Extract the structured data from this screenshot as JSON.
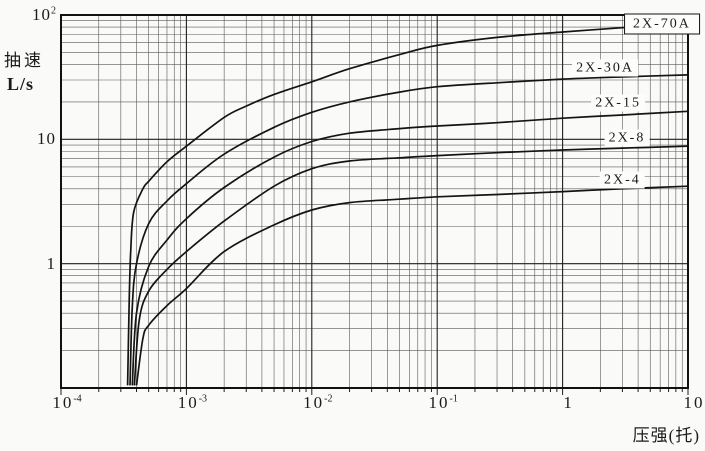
{
  "y_axis": {
    "title_line1": "抽速",
    "title_line2": "L/s",
    "ticks": [
      {
        "text": "10",
        "exp": "2",
        "v": 100
      },
      {
        "text": "10",
        "v": 10
      },
      {
        "text": "1",
        "v": 1
      }
    ]
  },
  "x_axis": {
    "title": "压强(托)",
    "ticks": [
      {
        "text": "10",
        "exp": "-4",
        "v": 0.0001
      },
      {
        "text": "10",
        "exp": "-3",
        "v": 0.001
      },
      {
        "text": "10",
        "exp": "-2",
        "v": 0.01
      },
      {
        "text": "10",
        "exp": "-1",
        "v": 0.1
      },
      {
        "text": "1",
        "v": 1
      },
      {
        "text": "10",
        "v": 10
      }
    ]
  },
  "colors": {
    "line": "#141414",
    "grid_major": "#1f1f1f",
    "grid_minor": "#5a5a5a",
    "frame": "#111111",
    "background": "#fafaf8",
    "label_bg": "#fdfdfc"
  },
  "chart_data": {
    "type": "line",
    "title": "",
    "xlabel": "压强(托)",
    "ylabel": "抽速 L/s",
    "x_scale": "log",
    "y_scale": "log",
    "xlim": [
      0.0001,
      10
    ],
    "ylim": [
      0.1,
      100
    ],
    "grid": "full log-log grid, major and minor lines",
    "legend_position": "inline labels at right side of curves",
    "series": [
      {
        "name": "2X-70A",
        "points": [
          [
            0.00034,
            0.105
          ],
          [
            0.00035,
            0.5
          ],
          [
            0.00036,
            1.3
          ],
          [
            0.00038,
            2.6
          ],
          [
            0.00045,
            4.0
          ],
          [
            0.0005,
            4.6
          ],
          [
            0.0007,
            6.6
          ],
          [
            0.001,
            8.8
          ],
          [
            0.002,
            15
          ],
          [
            0.003,
            18.5
          ],
          [
            0.005,
            23
          ],
          [
            0.01,
            29
          ],
          [
            0.02,
            37
          ],
          [
            0.05,
            48
          ],
          [
            0.1,
            57
          ],
          [
            0.3,
            66
          ],
          [
            1,
            73
          ],
          [
            3,
            79
          ],
          [
            10,
            86
          ]
        ]
      },
      {
        "name": "2X-30A",
        "points": [
          [
            0.000355,
            0.105
          ],
          [
            0.00037,
            0.45
          ],
          [
            0.0004,
            1.0
          ],
          [
            0.0005,
            2.1
          ],
          [
            0.0007,
            3.2
          ],
          [
            0.001,
            4.4
          ],
          [
            0.002,
            7.6
          ],
          [
            0.005,
            12.5
          ],
          [
            0.01,
            16.5
          ],
          [
            0.02,
            20
          ],
          [
            0.05,
            24
          ],
          [
            0.1,
            26.5
          ],
          [
            0.3,
            28.5
          ],
          [
            1,
            30.5
          ],
          [
            3,
            31.8
          ],
          [
            10,
            33
          ]
        ]
      },
      {
        "name": "2X-15",
        "points": [
          [
            0.00037,
            0.105
          ],
          [
            0.0004,
            0.4
          ],
          [
            0.0005,
            0.95
          ],
          [
            0.0007,
            1.55
          ],
          [
            0.001,
            2.3
          ],
          [
            0.002,
            4.1
          ],
          [
            0.005,
            7.2
          ],
          [
            0.01,
            9.6
          ],
          [
            0.02,
            11.2
          ],
          [
            0.05,
            12.2
          ],
          [
            0.1,
            12.8
          ],
          [
            0.3,
            13.6
          ],
          [
            1,
            14.8
          ],
          [
            3,
            15.7
          ],
          [
            10,
            16.8
          ]
        ]
      },
      {
        "name": "2X-8",
        "points": [
          [
            0.000385,
            0.105
          ],
          [
            0.00042,
            0.35
          ],
          [
            0.0005,
            0.6
          ],
          [
            0.0007,
            0.9
          ],
          [
            0.001,
            1.25
          ],
          [
            0.002,
            2.2
          ],
          [
            0.005,
            4.2
          ],
          [
            0.01,
            5.8
          ],
          [
            0.02,
            6.7
          ],
          [
            0.05,
            7.1
          ],
          [
            0.1,
            7.4
          ],
          [
            0.3,
            7.8
          ],
          [
            1,
            8.2
          ],
          [
            3,
            8.5
          ],
          [
            10,
            8.8
          ]
        ]
      },
      {
        "name": "2X-4",
        "points": [
          [
            0.0004,
            0.105
          ],
          [
            0.00045,
            0.25
          ],
          [
            0.0005,
            0.32
          ],
          [
            0.0007,
            0.46
          ],
          [
            0.001,
            0.63
          ],
          [
            0.002,
            1.25
          ],
          [
            0.005,
            2.05
          ],
          [
            0.01,
            2.7
          ],
          [
            0.02,
            3.1
          ],
          [
            0.05,
            3.3
          ],
          [
            0.1,
            3.45
          ],
          [
            0.3,
            3.6
          ],
          [
            1,
            3.8
          ],
          [
            3,
            4.0
          ],
          [
            10,
            4.2
          ]
        ]
      }
    ],
    "labels": [
      {
        "text": "2X-70A",
        "x": 6.2,
        "y": 85,
        "boxed": true
      },
      {
        "text": "2X-30A",
        "x": 2.18,
        "y": 37.5,
        "boxed": false
      },
      {
        "text": "2X-15",
        "x": 2.77,
        "y": 19.6,
        "boxed": false
      },
      {
        "text": "2X-8",
        "x": 3.26,
        "y": 10.3,
        "boxed": false
      },
      {
        "text": "2X-4",
        "x": 3.0,
        "y": 4.7,
        "boxed": false
      }
    ]
  }
}
